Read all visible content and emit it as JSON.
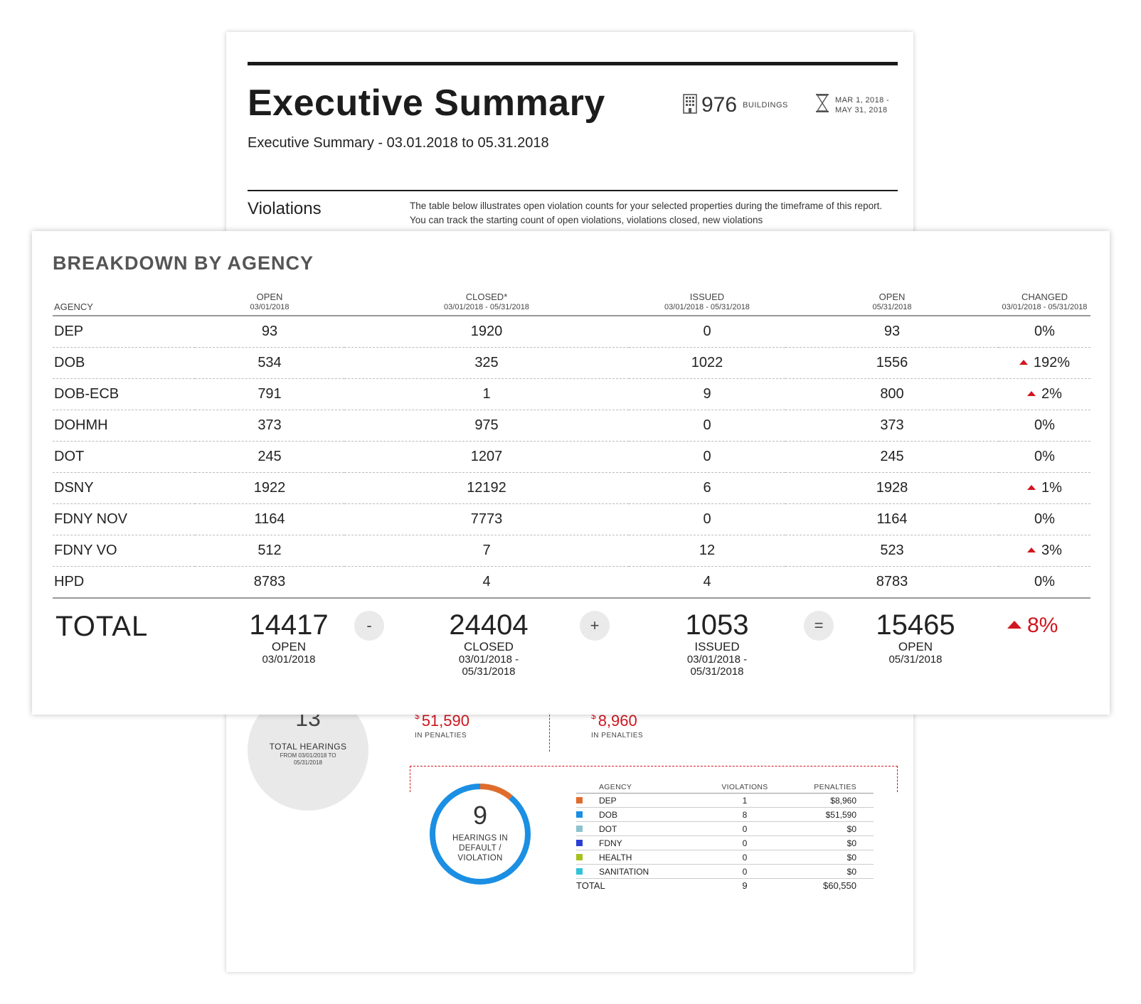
{
  "report": {
    "title": "Executive Summary",
    "subtitle": "Executive Summary - 03.01.2018 to 05.31.2018",
    "buildings_count": "976",
    "buildings_label": "BUILDINGS",
    "date_range_line1": "MAR 1, 2018 -",
    "date_range_line2": "MAY 31, 2018",
    "icons": {
      "buildings": "building-icon",
      "date": "hourglass-icon"
    },
    "section_title": "Violations",
    "section_intro": "The table below illustrates open violation counts for your selected properties during the timeframe of this report. You can track the starting count of open violations, violations closed, new violations"
  },
  "breakdown": {
    "title": "BREAKDOWN BY AGENCY",
    "columns": [
      {
        "label": "AGENCY",
        "sub": ""
      },
      {
        "label": "OPEN",
        "sub": "03/01/2018"
      },
      {
        "label": "CLOSED*",
        "sub": "03/01/2018 - 05/31/2018"
      },
      {
        "label": "ISSUED",
        "sub": "03/01/2018 - 05/31/2018"
      },
      {
        "label": "OPEN",
        "sub": "05/31/2018"
      },
      {
        "label": "CHANGED",
        "sub": "03/01/2018 - 05/31/2018"
      }
    ],
    "rows": [
      {
        "agency": "DEP",
        "open_start": "93",
        "closed": "1920",
        "issued": "0",
        "open_end": "93",
        "changed": "0%",
        "up": false
      },
      {
        "agency": "DOB",
        "open_start": "534",
        "closed": "325",
        "issued": "1022",
        "open_end": "1556",
        "changed": "192%",
        "up": true
      },
      {
        "agency": "DOB-ECB",
        "open_start": "791",
        "closed": "1",
        "issued": "9",
        "open_end": "800",
        "changed": "2%",
        "up": true
      },
      {
        "agency": "DOHMH",
        "open_start": "373",
        "closed": "975",
        "issued": "0",
        "open_end": "373",
        "changed": "0%",
        "up": false
      },
      {
        "agency": "DOT",
        "open_start": "245",
        "closed": "1207",
        "issued": "0",
        "open_end": "245",
        "changed": "0%",
        "up": false
      },
      {
        "agency": "DSNY",
        "open_start": "1922",
        "closed": "12192",
        "issued": "6",
        "open_end": "1928",
        "changed": "1%",
        "up": true
      },
      {
        "agency": "FDNY NOV",
        "open_start": "1164",
        "closed": "7773",
        "issued": "0",
        "open_end": "1164",
        "changed": "0%",
        "up": false
      },
      {
        "agency": "FDNY VO",
        "open_start": "512",
        "closed": "7",
        "issued": "12",
        "open_end": "523",
        "changed": "3%",
        "up": true
      },
      {
        "agency": "HPD",
        "open_start": "8783",
        "closed": "4",
        "issued": "4",
        "open_end": "8783",
        "changed": "0%",
        "up": false
      }
    ],
    "total": {
      "label": "TOTAL",
      "open_start": "14417",
      "open_start_cap": "OPEN",
      "open_start_sub": "03/01/2018",
      "op_minus": "-",
      "closed": "24404",
      "closed_cap": "CLOSED",
      "closed_sub1": "03/01/2018 -",
      "closed_sub2": "05/31/2018",
      "op_plus": "+",
      "issued": "1053",
      "issued_cap": "ISSUED",
      "issued_sub1": "03/01/2018 -",
      "issued_sub2": "05/31/2018",
      "op_equals": "=",
      "open_end": "15465",
      "open_end_cap": "OPEN",
      "open_end_sub": "05/31/2018",
      "changed": "8%"
    },
    "up_color": "#d0161f"
  },
  "hearings": {
    "total": "13",
    "total_label": "TOTAL HEARINGS",
    "total_sub": "FROM 03/01/2018 TO 05/31/2018",
    "penalty_currency": "$",
    "penalty_a": "51,590",
    "penalty_a_label": "IN PENALTIES",
    "penalty_b": "8,960",
    "penalty_b_label": "IN PENALTIES",
    "default_count": "9",
    "default_label": "HEARINGS IN DEFAULT / VIOLATION",
    "donut": {
      "dep_fraction": 0.111,
      "dob_fraction": 0.889,
      "dep_color": "#e06c2c",
      "dob_color": "#1a8fe3"
    },
    "table_headers": {
      "agency": "AGENCY",
      "violations": "VIOLATIONS",
      "penalties": "PENALTIES"
    },
    "rows": [
      {
        "agency": "DEP",
        "violations": "1",
        "penalties": "$8,960",
        "color": "#e06c2c"
      },
      {
        "agency": "DOB",
        "violations": "8",
        "penalties": "$51,590",
        "color": "#1a8fe3"
      },
      {
        "agency": "DOT",
        "violations": "0",
        "penalties": "$0",
        "color": "#8cc3cf"
      },
      {
        "agency": "FDNY",
        "violations": "0",
        "penalties": "$0",
        "color": "#2b3ed6"
      },
      {
        "agency": "HEALTH",
        "violations": "0",
        "penalties": "$0",
        "color": "#a5c21c"
      },
      {
        "agency": "SANITATION",
        "violations": "0",
        "penalties": "$0",
        "color": "#31c3d8"
      }
    ],
    "total_row": {
      "label": "TOTAL",
      "violations": "9",
      "penalties": "$60,550"
    }
  }
}
